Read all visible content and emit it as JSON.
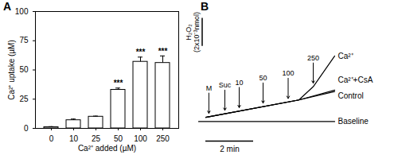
{
  "chart_data": [
    {
      "type": "bar",
      "panel": "A",
      "x_label": "Ca²⁺ added (µM)",
      "y_label": "Ca²⁺ uptake (µM)",
      "categories": [
        "0",
        "10",
        "25",
        "50",
        "100",
        "250"
      ],
      "values": [
        1,
        7,
        10,
        33,
        57,
        56
      ],
      "errors": [
        0.5,
        1,
        0.5,
        1.5,
        4,
        6
      ],
      "significance": [
        null,
        null,
        null,
        "***",
        "***",
        "***"
      ],
      "color": "#ffffff",
      "ylim": [
        0,
        100
      ],
      "yticks": [
        0,
        25,
        50,
        75,
        100
      ]
    },
    {
      "type": "line",
      "panel": "B",
      "tick_labels": false,
      "xlim": [
        -0.4,
        6.0
      ],
      "ylim": [
        -1.4,
        8.0
      ],
      "series": [
        {
          "name": "Ca²⁺",
          "color": "#000000",
          "x": [
            0,
            3.9,
            4.5,
            5.4
          ],
          "values": [
            0.3,
            1.55,
            2.5,
            4.7
          ]
        },
        {
          "name": "Ca²⁺+CsA",
          "color": "#000000",
          "x": [
            0,
            3.9,
            5.4
          ],
          "values": [
            0.3,
            1.55,
            2.25
          ]
        },
        {
          "name": "Control",
          "color": "#000000",
          "x": [
            0,
            3.9,
            5.4
          ],
          "values": [
            0.3,
            1.55,
            2.15
          ]
        },
        {
          "name": "Baseline",
          "color": "#000000",
          "x": [
            -0.3,
            5.4
          ],
          "values": [
            0,
            0
          ]
        }
      ],
      "annotations": [
        {
          "label": "M",
          "x": 0.13
        },
        {
          "label": "Suc",
          "x": 0.8
        },
        {
          "label": "10",
          "x": 1.4
        },
        {
          "label": "50",
          "x": 2.4
        },
        {
          "label": "100",
          "x": 3.45
        },
        {
          "label": "250",
          "x": 4.5
        }
      ],
      "scale_bars": {
        "x": {
          "value": 2,
          "label": "2 min"
        },
        "y": {
          "value": 2,
          "quantity": "H₂O₂",
          "label": "(2x10⁻³nmol)"
        }
      }
    }
  ]
}
